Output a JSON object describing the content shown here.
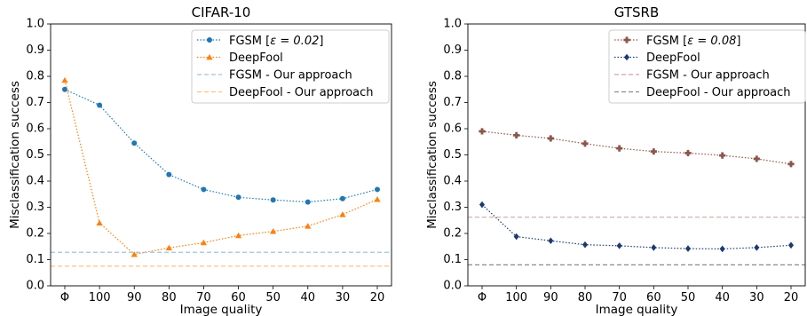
{
  "chart_data": [
    {
      "type": "line",
      "title": "CIFAR-10",
      "xlabel": "Image quality",
      "ylabel": "Misclassification success",
      "categories": [
        "Φ",
        "100",
        "90",
        "80",
        "70",
        "60",
        "50",
        "40",
        "30",
        "20"
      ],
      "ylim": [
        0.0,
        1.0
      ],
      "yticks": [
        "0.0",
        "0.1",
        "0.2",
        "0.3",
        "0.4",
        "0.5",
        "0.6",
        "0.7",
        "0.8",
        "0.9",
        "1.0"
      ],
      "grid": false,
      "legend_position": "top-right",
      "series": [
        {
          "name": "FGSM [ε = 0.02]",
          "label_prefix": "FGSM [",
          "label_math": "ε = 0.02",
          "label_suffix": "]",
          "style": "dotted",
          "marker": "circle",
          "color": "#1f77b4",
          "values": [
            0.75,
            0.69,
            0.545,
            0.425,
            0.368,
            0.338,
            0.328,
            0.32,
            0.333,
            0.368
          ]
        },
        {
          "name": "DeepFool",
          "style": "dotted",
          "marker": "triangle",
          "color": "#ff7f0e",
          "values": [
            0.785,
            0.24,
            0.12,
            0.145,
            0.165,
            0.192,
            0.208,
            0.228,
            0.272,
            0.33
          ]
        },
        {
          "name": "FGSM - Our approach",
          "style": "dashed-hline",
          "color": "#9ec4e1",
          "value": 0.128
        },
        {
          "name": "DeepFool - Our approach",
          "style": "dashed-hline",
          "color": "#ffc084",
          "value": 0.075
        }
      ]
    },
    {
      "type": "line",
      "title": "GTSRB",
      "xlabel": "Image quality",
      "ylabel": "Misclassification success",
      "categories": [
        "Φ",
        "100",
        "90",
        "80",
        "70",
        "60",
        "50",
        "40",
        "30",
        "20"
      ],
      "ylim": [
        0.0,
        1.0
      ],
      "yticks": [
        "0.0",
        "0.1",
        "0.2",
        "0.3",
        "0.4",
        "0.5",
        "0.6",
        "0.7",
        "0.8",
        "0.9",
        "1.0"
      ],
      "grid": false,
      "legend_position": "top-right",
      "series": [
        {
          "name": "FGSM [ε = 0.08]",
          "label_prefix": "FGSM [",
          "label_math": "ε = 0.08",
          "label_suffix": "]",
          "style": "dotted",
          "marker": "plus-filled",
          "color": "#8c564b",
          "values": [
            0.59,
            0.575,
            0.563,
            0.543,
            0.525,
            0.513,
            0.507,
            0.498,
            0.485,
            0.465
          ]
        },
        {
          "name": "DeepFool",
          "style": "dotted",
          "marker": "diamond",
          "color": "#1b3a70",
          "values": [
            0.31,
            0.188,
            0.172,
            0.157,
            0.153,
            0.146,
            0.142,
            0.141,
            0.146,
            0.155
          ]
        },
        {
          "name": "FGSM - Our approach",
          "style": "dashed-hline",
          "color": "#d4a5a5",
          "value": 0.262
        },
        {
          "name": "DeepFool - Our approach",
          "style": "dashed-hline",
          "color": "#8a8a8a",
          "value": 0.08
        }
      ]
    }
  ]
}
